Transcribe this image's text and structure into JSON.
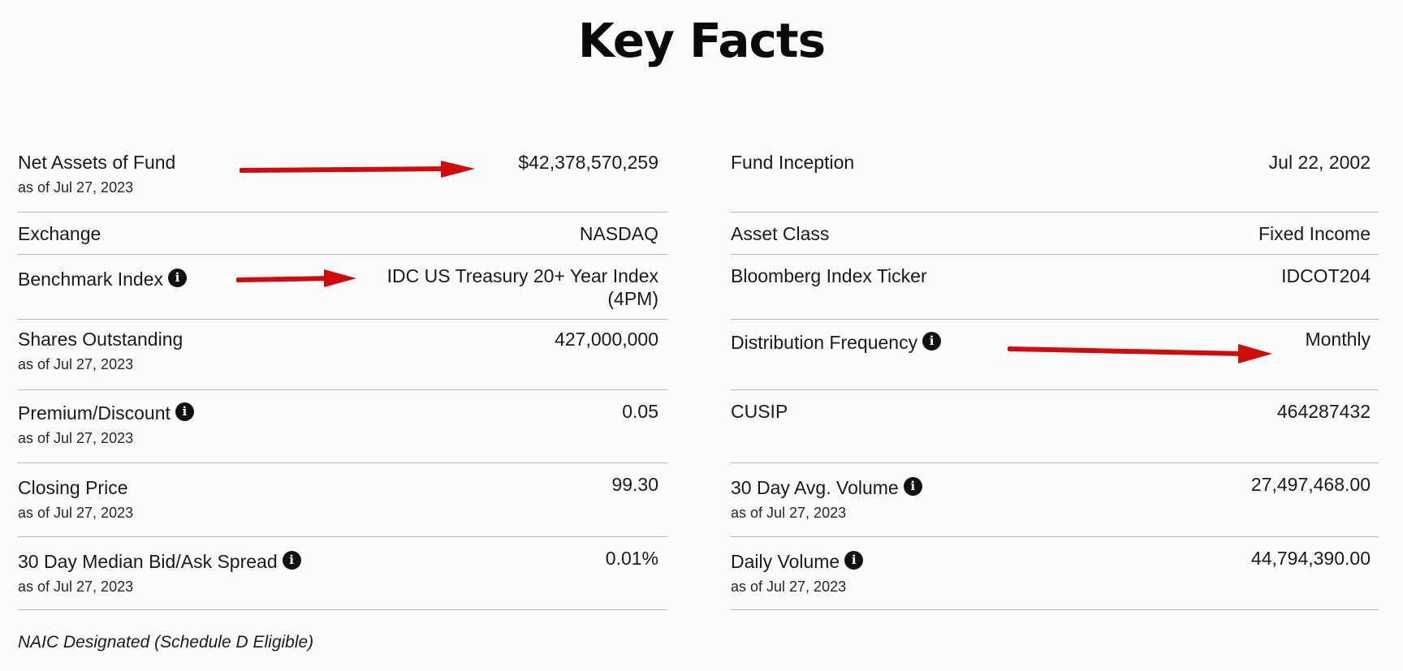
{
  "title": "Key Facts",
  "left_column": [
    {
      "label": "Net Assets of Fund",
      "info": false,
      "as_of": "as of Jul 27, 2023",
      "value": [
        "$42,378,570,259"
      ]
    },
    {
      "label": "Exchange",
      "info": false,
      "as_of": "",
      "value": [
        "NASDAQ"
      ]
    },
    {
      "label": "Benchmark Index",
      "info": true,
      "as_of": "",
      "value": [
        "IDC US Treasury 20+ Year Index",
        "(4PM)"
      ]
    },
    {
      "label": "Shares Outstanding",
      "info": false,
      "as_of": "as of Jul 27, 2023",
      "value": [
        "427,000,000"
      ]
    },
    {
      "label": "Premium/Discount",
      "info": true,
      "as_of": "as of Jul 27, 2023",
      "value": [
        "0.05"
      ]
    },
    {
      "label": "Closing Price",
      "info": false,
      "as_of": "as of Jul 27, 2023",
      "value": [
        "99.30"
      ]
    },
    {
      "label": "30 Day Median Bid/Ask Spread",
      "info": true,
      "as_of": "as of Jul 27, 2023",
      "value": [
        "0.01%"
      ]
    }
  ],
  "right_column": [
    {
      "label": "Fund Inception",
      "info": false,
      "as_of": "",
      "value": [
        "Jul 22, 2002"
      ]
    },
    {
      "label": "Asset Class",
      "info": false,
      "as_of": "",
      "value": [
        "Fixed Income"
      ]
    },
    {
      "label": "Bloomberg Index Ticker",
      "info": false,
      "as_of": "",
      "value": [
        "IDCOT204"
      ]
    },
    {
      "label": "Distribution Frequency",
      "info": true,
      "as_of": "",
      "value": [
        "Monthly"
      ]
    },
    {
      "label": "CUSIP",
      "info": false,
      "as_of": "",
      "value": [
        "464287432"
      ]
    },
    {
      "label": "30 Day Avg. Volume",
      "info": true,
      "as_of": "as of Jul 27, 2023",
      "value": [
        "27,497,468.00"
      ]
    },
    {
      "label": "Daily Volume",
      "info": true,
      "as_of": "as of Jul 27, 2023",
      "value": [
        "44,794,390.00"
      ]
    }
  ],
  "footer_note": "NAIC Designated (Schedule D Eligible)",
  "info_icon_glyph": "i",
  "info_icon_name": "info-icon",
  "annotation_color": "#d10a0a"
}
